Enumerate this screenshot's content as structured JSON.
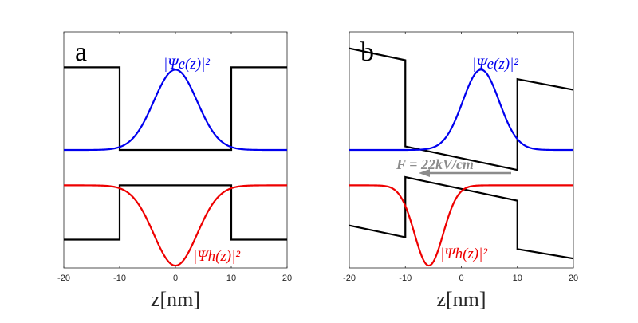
{
  "chart_data": [
    {
      "type": "line",
      "panel_label": "a",
      "xlabel": "z[nm]",
      "xlim": [
        -20,
        20
      ],
      "x_ticks": [
        "-20",
        "-10",
        "0",
        "10",
        "20"
      ],
      "ylim": [
        0,
        10
      ],
      "well_edges": [
        -10,
        10
      ],
      "series": [
        {
          "name": "conduction band",
          "color": "#000000",
          "x": [
            -20,
            -10,
            -10,
            10,
            10,
            20
          ],
          "y": [
            8.5,
            8.5,
            5.0,
            5.0,
            8.5,
            8.5
          ]
        },
        {
          "name": "valence band",
          "color": "#000000",
          "x": [
            -20,
            -10,
            -10,
            10,
            10,
            20
          ],
          "y": [
            1.2,
            1.2,
            3.5,
            3.5,
            1.2,
            1.2
          ]
        },
        {
          "name": "electron",
          "label": "|Ψe(z)|²",
          "color": "#0000ee",
          "baseline": 5.0,
          "peak_z": 0,
          "width_nm": 5.5,
          "amplitude": 3.4,
          "sign": 1
        },
        {
          "name": "hole",
          "label": "|Ψh(z)|²",
          "color": "#ee0000",
          "baseline": 3.5,
          "peak_z": 0,
          "width_nm": 5.5,
          "amplitude": 3.4,
          "sign": -1
        }
      ]
    },
    {
      "type": "line",
      "panel_label": "b",
      "xlabel": "z[nm]",
      "xlim": [
        -20,
        20
      ],
      "x_ticks": [
        "-20",
        "-10",
        "0",
        "10",
        "20"
      ],
      "ylim": [
        0,
        10
      ],
      "field_label": "F = 22kV/cm",
      "well_edges": [
        -10,
        10
      ],
      "series": [
        {
          "name": "conduction band",
          "color": "#000000",
          "x": [
            -20,
            -10,
            -10,
            10,
            10,
            20
          ],
          "y": [
            9.3,
            8.8,
            5.15,
            4.15,
            8.0,
            7.55
          ]
        },
        {
          "name": "valence band",
          "color": "#000000",
          "x": [
            -20,
            -10,
            -10,
            10,
            10,
            20
          ],
          "y": [
            1.8,
            1.3,
            3.85,
            2.85,
            0.8,
            0.4
          ]
        },
        {
          "name": "electron",
          "label": "|Ψe(z)|²",
          "color": "#0000ee",
          "baseline": 5.0,
          "peak_z": 3.5,
          "width_nm": 4.6,
          "amplitude": 3.4,
          "sign": 1
        },
        {
          "name": "hole",
          "label": "|Ψh(z)|²",
          "color": "#ee0000",
          "baseline": 3.5,
          "peak_z": -5.8,
          "width_nm": 3.6,
          "amplitude": 3.4,
          "sign": -1
        }
      ]
    }
  ]
}
